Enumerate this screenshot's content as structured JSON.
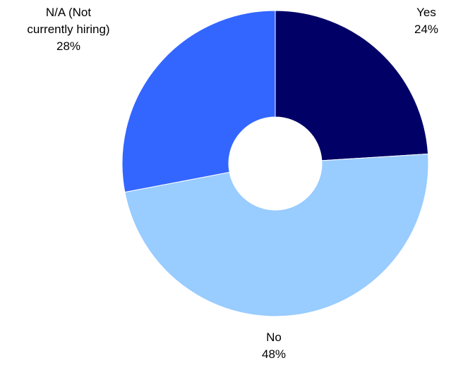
{
  "chart_data": {
    "type": "pie",
    "style": "donut",
    "title": "",
    "categories": [
      "Yes",
      "No",
      "N/A (Not currently hiring)"
    ],
    "values": [
      24,
      48,
      28
    ],
    "unit": "%",
    "colors": [
      "#000066",
      "#99ccff",
      "#3366ff"
    ],
    "start": "12 o'clock",
    "direction": "clockwise",
    "legend": "none",
    "labels": [
      {
        "lines": [
          "Yes"
        ],
        "value": "24%"
      },
      {
        "lines": [
          "No"
        ],
        "value": "48%"
      },
      {
        "lines": [
          "N/A (Not",
          "currently hiring)"
        ],
        "value": "28%"
      }
    ]
  }
}
